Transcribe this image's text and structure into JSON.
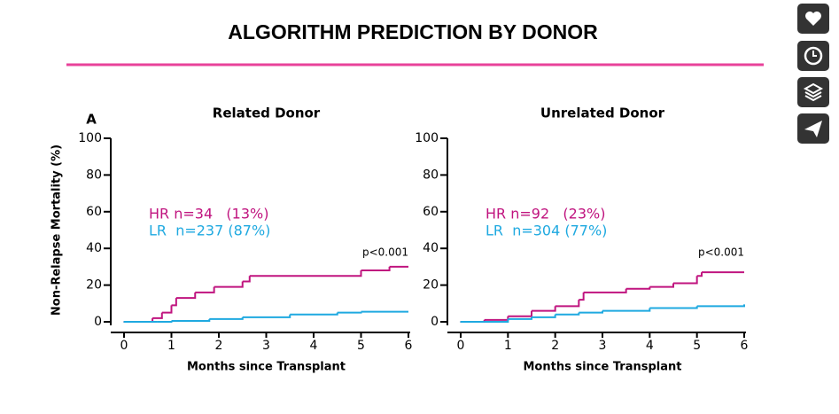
{
  "slide": {
    "title": "ALGORITHM PREDICTION BY DONOR",
    "panel_label": "A"
  },
  "chart_data": [
    {
      "type": "line",
      "step": true,
      "title": "Related Donor",
      "x_label": "Months since Transplant",
      "y_label": "Non-Relapse Mortality (%)",
      "xlim": [
        0,
        6
      ],
      "xticks": [
        0,
        1,
        2,
        3,
        4,
        5,
        6
      ],
      "ylim": [
        0,
        100
      ],
      "yticks": [
        0,
        20,
        40,
        60,
        80,
        100
      ],
      "annotation": "p<0.001",
      "series": [
        {
          "name": "HR n=34   (13%)",
          "color": "#c0147f",
          "x": [
            0,
            0.6,
            0.8,
            1.0,
            1.1,
            1.5,
            1.9,
            2.5,
            2.65,
            5.0,
            5.6,
            6
          ],
          "values": [
            0,
            2,
            5,
            9,
            13,
            16,
            19,
            22,
            25,
            28,
            30,
            30
          ]
        },
        {
          "name": "LR  n=237 (87%)",
          "color": "#1fa9e0",
          "x": [
            0,
            0.7,
            1.0,
            1.8,
            2.5,
            3.5,
            4.5,
            5.0,
            6
          ],
          "values": [
            0,
            0,
            0.5,
            1.5,
            2.5,
            4,
            5,
            5.5,
            5.5
          ]
        }
      ]
    },
    {
      "type": "line",
      "step": true,
      "title": "Unrelated Donor",
      "x_label": "Months since Transplant",
      "xlim": [
        0,
        6
      ],
      "xticks": [
        0,
        1,
        2,
        3,
        4,
        5,
        6
      ],
      "ylim": [
        0,
        100
      ],
      "yticks": [
        0,
        20,
        40,
        60,
        80,
        100
      ],
      "annotation": "p<0.001",
      "series": [
        {
          "name": "HR n=92   (23%)",
          "color": "#c0147f",
          "x": [
            0,
            0.5,
            1.0,
            1.5,
            2.0,
            2.5,
            2.6,
            3.5,
            4.0,
            4.5,
            5.0,
            5.1,
            6
          ],
          "values": [
            0,
            1,
            3,
            6,
            8.5,
            12,
            16,
            18,
            19,
            21,
            25,
            27,
            27
          ]
        },
        {
          "name": "LR  n=304 (77%)",
          "color": "#1fa9e0",
          "x": [
            0,
            0.5,
            1.0,
            1.5,
            2.0,
            2.5,
            3.0,
            4.0,
            5.0,
            6
          ],
          "values": [
            0,
            0,
            1.5,
            2.5,
            4,
            5,
            6,
            7.5,
            8.5,
            9.5
          ]
        }
      ]
    }
  ]
}
